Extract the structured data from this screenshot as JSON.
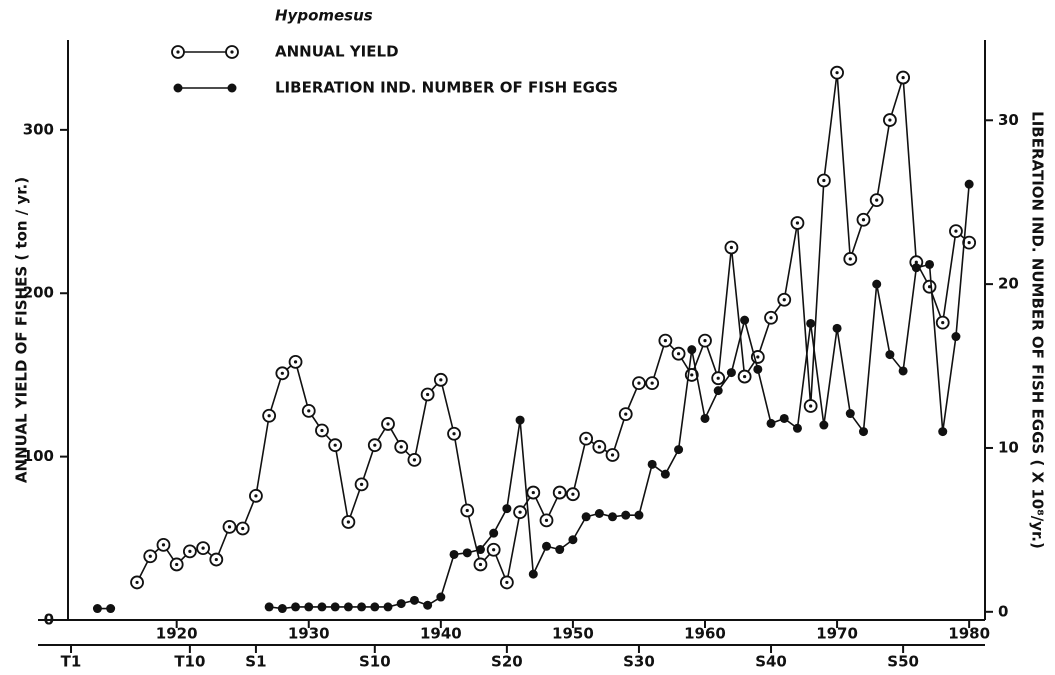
{
  "chart_data": {
    "type": "line",
    "title": "Hypomesus",
    "y_label": "ANNUAL YIELD OF FISHES ( ton / yr.)",
    "y2_label": "LIBERATION IND. NUMBER OF FISH EGGS ( X 10⁸/yr.)",
    "x": [
      1914,
      1915,
      1916,
      1917,
      1918,
      1919,
      1920,
      1921,
      1922,
      1923,
      1924,
      1925,
      1926,
      1927,
      1928,
      1929,
      1930,
      1931,
      1932,
      1933,
      1934,
      1935,
      1936,
      1937,
      1938,
      1939,
      1940,
      1941,
      1942,
      1943,
      1944,
      1945,
      1946,
      1947,
      1948,
      1949,
      1950,
      1951,
      1952,
      1953,
      1954,
      1955,
      1956,
      1957,
      1958,
      1959,
      1960,
      1961,
      1962,
      1963,
      1964,
      1965,
      1966,
      1967,
      1968,
      1969,
      1970,
      1971,
      1972,
      1973,
      1974,
      1975,
      1976,
      1977,
      1978,
      1979,
      1980
    ],
    "series": [
      {
        "name": "ANNUAL YIELD",
        "color": "#111111",
        "marker": "open",
        "values": [
          null,
          null,
          null,
          23,
          39,
          46,
          34,
          42,
          44,
          37,
          57,
          56,
          76,
          125,
          151,
          158,
          128,
          116,
          107,
          60,
          83,
          107,
          120,
          106,
          98,
          138,
          147,
          114,
          67,
          34,
          43,
          23,
          66,
          78,
          61,
          78,
          77,
          111,
          106,
          101,
          126,
          145,
          145,
          171,
          163,
          150,
          171,
          148,
          228,
          149,
          161,
          185,
          196,
          243,
          131,
          269,
          335,
          221,
          245,
          257,
          306,
          332,
          219,
          204,
          182,
          238,
          231
        ]
      },
      {
        "name": "LIBERATION IND. NUMBER OF FISH EGGS",
        "color": "#111111",
        "marker": "filled",
        "axis": "y2",
        "values": [
          0.2,
          0.2,
          null,
          null,
          null,
          null,
          null,
          null,
          null,
          null,
          null,
          null,
          null,
          0.3,
          0.2,
          0.3,
          0.3,
          0.3,
          0.3,
          0.3,
          0.3,
          0.3,
          0.3,
          0.5,
          0.7,
          0.4,
          0.9,
          3.5,
          3.6,
          3.8,
          4.8,
          6.3,
          11.7,
          2.3,
          4.0,
          3.8,
          4.4,
          5.8,
          6.0,
          5.8,
          5.9,
          5.9,
          9.0,
          8.4,
          9.9,
          16.0,
          11.8,
          13.5,
          14.6,
          17.8,
          14.8,
          11.5,
          11.8,
          11.2,
          17.6,
          11.4,
          17.3,
          12.1,
          11.0,
          20.0,
          15.7,
          14.7,
          21.0,
          21.2,
          11.0,
          16.8,
          26.1
        ]
      }
    ],
    "xlim": [
      1909.5,
      1981.2
    ],
    "xticks": [
      1920,
      1930,
      1940,
      1950,
      1960,
      1970,
      1980
    ],
    "x2ticks": [
      {
        "value": 1912,
        "label": "T1"
      },
      {
        "value": 1921,
        "label": "T10"
      },
      {
        "value": 1926,
        "label": "S1"
      },
      {
        "value": 1935,
        "label": "S10"
      },
      {
        "value": 1945,
        "label": "S20"
      },
      {
        "value": 1955,
        "label": "S30"
      },
      {
        "value": 1965,
        "label": "S40"
      },
      {
        "value": 1975,
        "label": "S50"
      }
    ],
    "ylim": [
      0,
      355
    ],
    "yticks": [
      0,
      100,
      200,
      300
    ],
    "y2lim": [
      -0.5,
      34.9
    ],
    "y2ticks": [
      0,
      10,
      20,
      30
    ],
    "grid": false
  }
}
